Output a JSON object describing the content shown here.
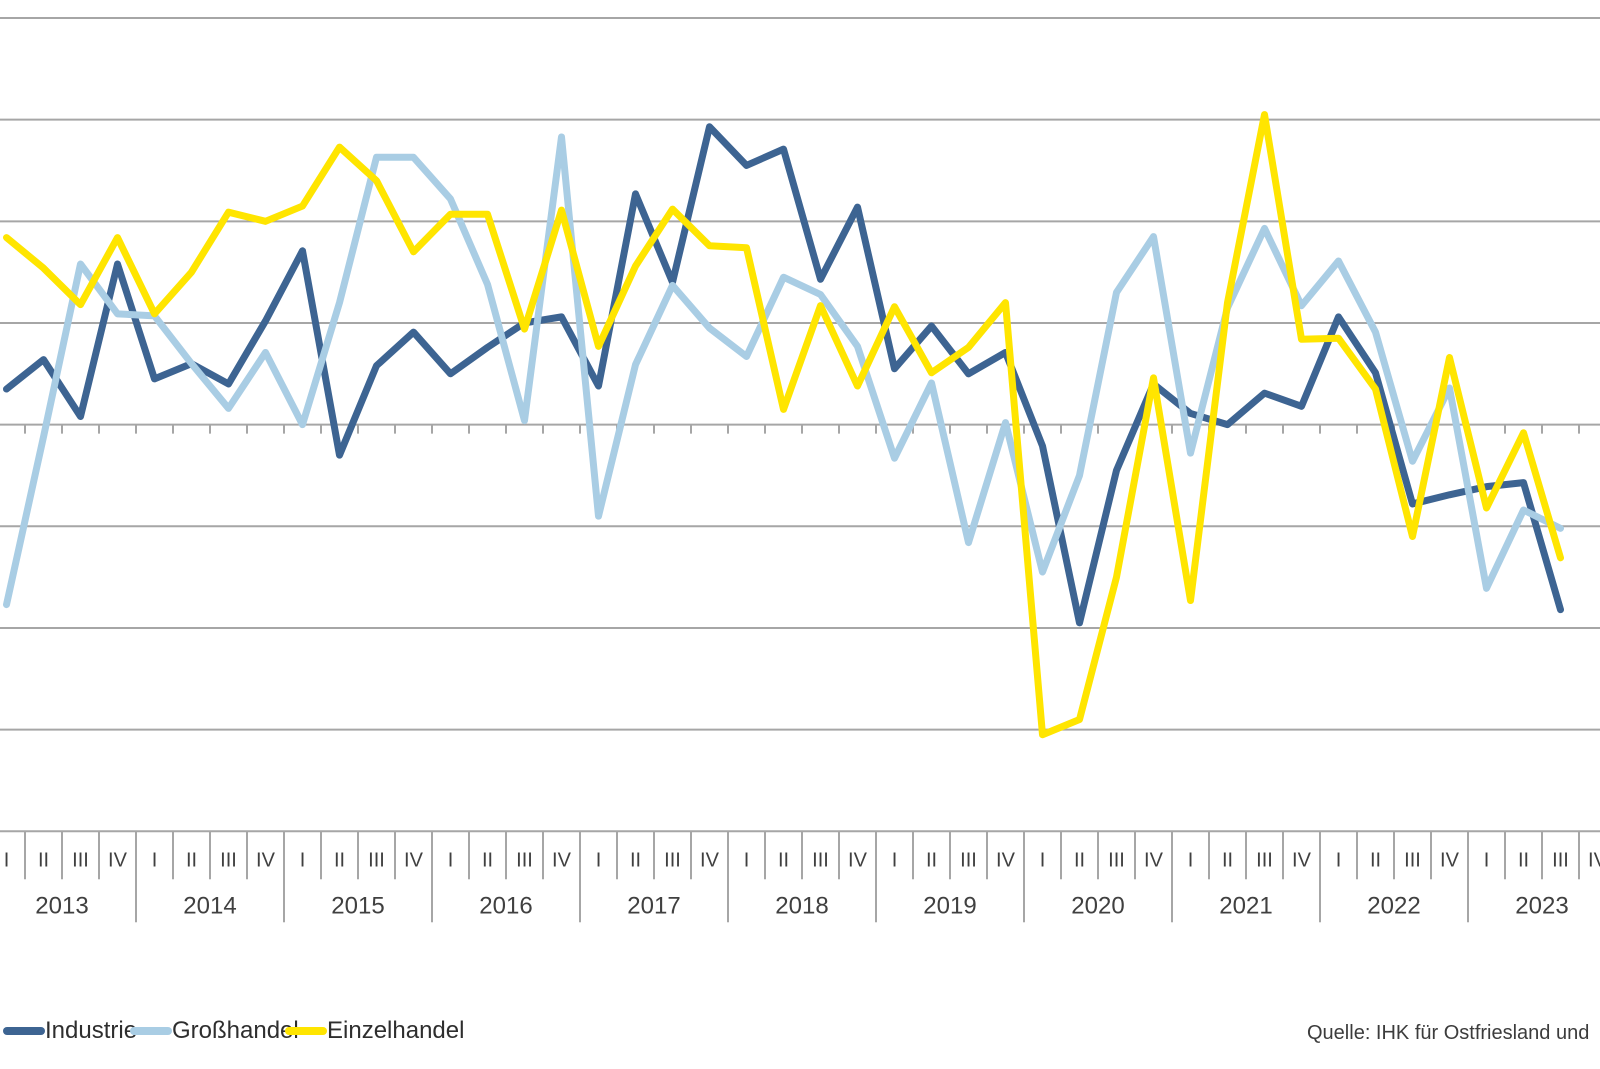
{
  "chart_data": {
    "type": "line",
    "x_axis": {
      "years": [
        {
          "label": "2013",
          "quarters": [
            "I",
            "II",
            "III",
            "IV"
          ]
        },
        {
          "label": "2014",
          "quarters": [
            "I",
            "II",
            "III",
            "IV"
          ]
        },
        {
          "label": "2015",
          "quarters": [
            "I",
            "II",
            "III",
            "IV"
          ]
        },
        {
          "label": "2016",
          "quarters": [
            "I",
            "II",
            "III",
            "IV"
          ]
        },
        {
          "label": "2017",
          "quarters": [
            "I",
            "II",
            "III",
            "IV"
          ]
        },
        {
          "label": "2018",
          "quarters": [
            "I",
            "II",
            "III",
            "IV"
          ]
        },
        {
          "label": "2019",
          "quarters": [
            "I",
            "II",
            "III",
            "IV"
          ]
        },
        {
          "label": "2020",
          "quarters": [
            "I",
            "II",
            "III",
            "IV"
          ]
        },
        {
          "label": "2021",
          "quarters": [
            "I",
            "II",
            "III",
            "IV"
          ]
        },
        {
          "label": "2022",
          "quarters": [
            "I",
            "II",
            "III",
            "IV"
          ]
        },
        {
          "label": "2023",
          "quarters": [
            "I",
            "II",
            "III",
            "IV"
          ]
        }
      ],
      "note": "first and last quarter cells are cropped by the image edges"
    },
    "y_axis": {
      "tick_labels_visible": false,
      "gridline_count": 9,
      "units_between_gridlines": 1,
      "ylim": [
        -4,
        4
      ],
      "zero_line_has_tick_marks": true,
      "grid": "horizontal gridlines on"
    },
    "series": [
      {
        "name": "Industrie",
        "color": "#3D6492",
        "values": [
          0.35,
          0.64,
          0.08,
          1.58,
          0.45,
          0.6,
          0.4,
          1.02,
          1.71,
          -0.3,
          0.58,
          0.91,
          0.5,
          0.76,
          1.0,
          1.06,
          0.38,
          2.27,
          1.4,
          2.93,
          2.55,
          2.71,
          1.43,
          2.14,
          0.55,
          0.97,
          0.5,
          0.71,
          -0.21,
          -1.95,
          -0.45,
          0.4,
          0.11,
          0.0,
          0.31,
          0.18,
          1.06,
          0.51,
          -0.78,
          -0.69,
          -0.61,
          -0.57,
          -1.82
        ]
      },
      {
        "name": "Großhandel",
        "color": "#A9CDE4",
        "values": [
          -1.77,
          -0.12,
          1.58,
          1.09,
          1.07,
          0.6,
          0.16,
          0.71,
          0.0,
          1.2,
          2.63,
          2.63,
          2.22,
          1.38,
          0.04,
          2.83,
          -0.9,
          0.59,
          1.37,
          0.95,
          0.67,
          1.45,
          1.28,
          0.77,
          -0.33,
          0.41,
          -1.16,
          0.02,
          -1.45,
          -0.5,
          1.3,
          1.85,
          -0.28,
          1.15,
          1.93,
          1.17,
          1.61,
          0.91,
          -0.36,
          0.36,
          -1.61,
          -0.84,
          -1.02
        ]
      },
      {
        "name": "Einzelhandel",
        "color": "#FFE500",
        "values": [
          1.84,
          1.54,
          1.18,
          1.84,
          1.09,
          1.5,
          2.09,
          2.0,
          2.15,
          2.73,
          2.4,
          1.7,
          2.07,
          2.07,
          0.94,
          2.11,
          0.77,
          1.56,
          2.12,
          1.76,
          1.74,
          0.15,
          1.17,
          0.38,
          1.16,
          0.51,
          0.76,
          1.2,
          -3.05,
          -2.9,
          -1.5,
          0.46,
          -1.73,
          1.2,
          3.05,
          0.84,
          0.85,
          0.35,
          -1.1,
          0.66,
          -0.82,
          -0.08,
          -1.31
        ]
      }
    ],
    "legend_position": "bottom-left",
    "gridline_color": "#A6A6A6",
    "axis_text_color": "#404040"
  },
  "legend": {
    "items": [
      {
        "label": "Industrie",
        "color": "#3D6492"
      },
      {
        "label": "Großhandel",
        "color": "#A9CDE4"
      },
      {
        "label": "Einzelhandel",
        "color": "#FFE500"
      }
    ]
  },
  "source_note": "Quelle: IHK für Ostfriesland und"
}
